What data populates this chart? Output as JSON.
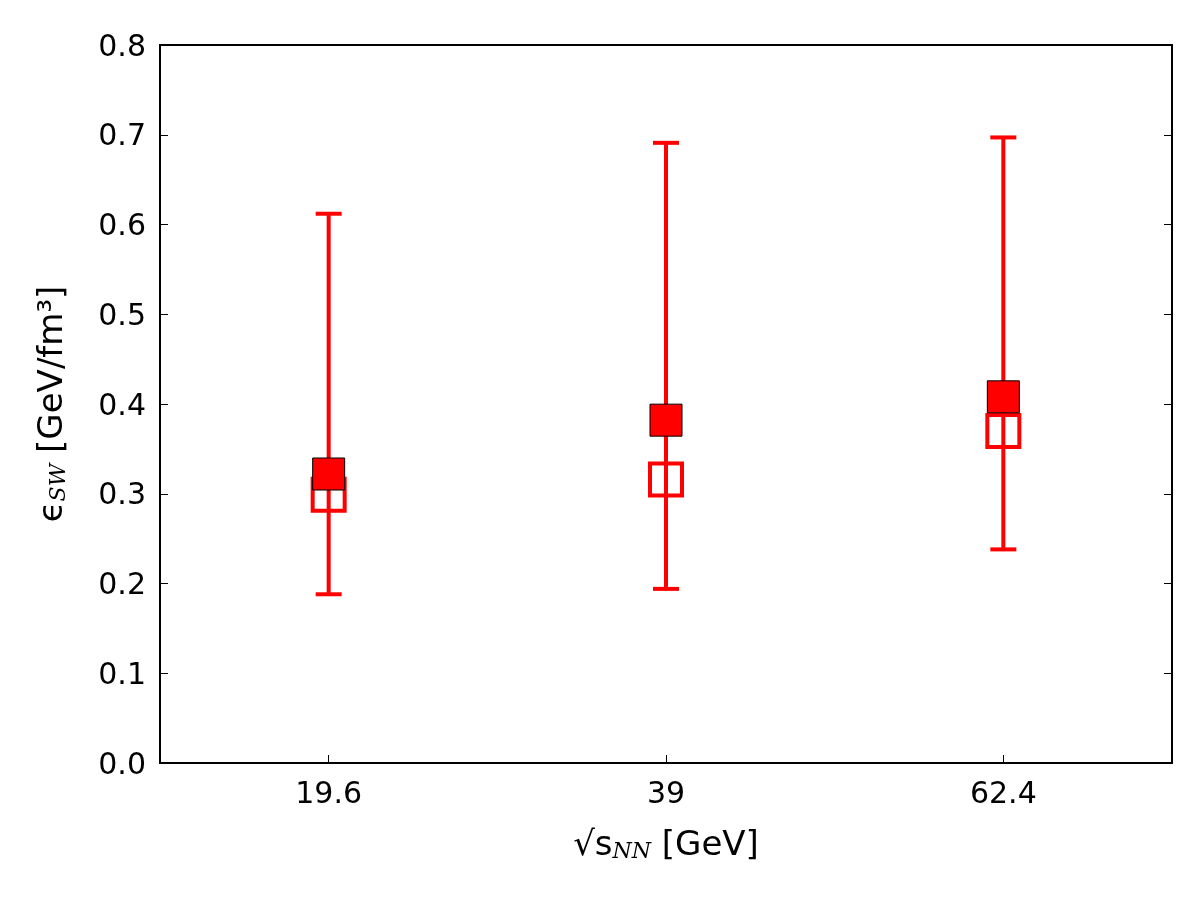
{
  "chart_data": {
    "type": "scatter",
    "categories": [
      "19.6",
      "39",
      "62.4"
    ],
    "xlabel": "√s$_{NN}$ [GeV]",
    "ylabel": "ϵ$_{SW}$ [GeV/fm³]",
    "series": [
      {
        "color": "#ff0000",
        "values": [
          0.299,
          0.316,
          0.37
        ]
      },
      {
        "color": "#ff0000",
        "values": [
          0.322,
          0.382,
          0.408
        ],
        "errors": [
          [
            0.188,
            0.612
          ],
          [
            0.194,
            0.691
          ],
          [
            0.238,
            0.697
          ]
        ]
      }
    ],
    "marker": "square",
    "ylim": [
      0,
      0.8
    ],
    "yticks": [
      {
        "value": 0,
        "label": "0.0"
      },
      0.1,
      0.2,
      0.3,
      0.4,
      0.5,
      0.6,
      0.7,
      0.8
    ],
    "grid": false
  }
}
